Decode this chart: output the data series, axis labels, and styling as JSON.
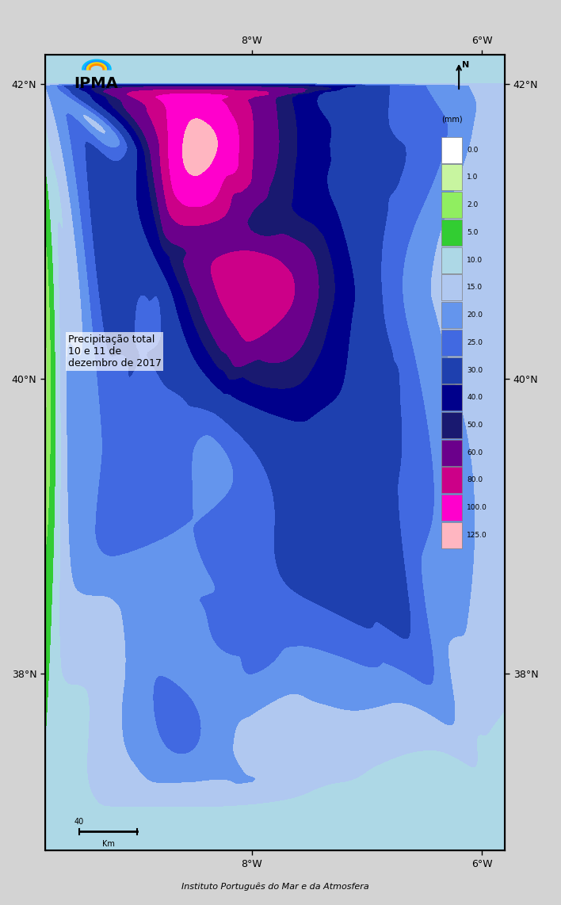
{
  "title": "Precipitação total\n10 e 11 de\ndezembro de 2017",
  "institution": "Instituto Português do Mar e da Atmosfera",
  "scale_label": "40",
  "scale_unit": "Km",
  "colorbar_label": "(mm)",
  "colorbar_levels": [
    0.0,
    1.0,
    2.0,
    5.0,
    10.0,
    15.0,
    20.0,
    25.0,
    30.0,
    40.0,
    50.0,
    60.0,
    80.0,
    100.0,
    125.0
  ],
  "colorbar_colors": [
    "#FFFFFF",
    "#C8F5A0",
    "#90EE60",
    "#32CD32",
    "#00A000",
    "#ADD8E6",
    "#87CEEB",
    "#6495ED",
    "#4169E1",
    "#00008B",
    "#191970",
    "#800080",
    "#CC0066",
    "#FF00FF",
    "#FFB6C1"
  ],
  "bg_color": "#D3D3D3",
  "map_bg_color": "#D3D3D3",
  "border_color": "#000000",
  "border_linewidth": 0.8,
  "lon_min": -9.8,
  "lon_max": -5.8,
  "lat_min": 36.8,
  "lat_max": 42.2,
  "tick_lons": [
    -8.0,
    -6.0
  ],
  "tick_lats": [
    38.0,
    40.0,
    42.0
  ],
  "figsize": [
    7.08,
    11.42
  ],
  "dpi": 100,
  "logo_text": "IPMA",
  "north_arrow_lon": -6.1,
  "north_arrow_lat": 42.05
}
